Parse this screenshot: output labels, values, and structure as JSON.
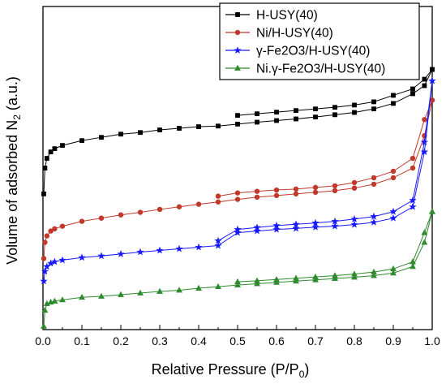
{
  "chart_data": {
    "type": "line",
    "xlabel": "Relative Pressure (P/P",
    "xlabel_sub": "0",
    "xlabel_tail": ")",
    "ylabel": "Volume of adsorbed N",
    "ylabel_sub": "2",
    "ylabel_tail": " (a.u.)",
    "xlim": [
      0.0,
      1.0
    ],
    "ylim": [
      0,
      100
    ],
    "x_ticks": [
      "0.0",
      "0.1",
      "0.2",
      "0.3",
      "0.4",
      "0.5",
      "0.6",
      "0.7",
      "0.8",
      "0.9",
      "1.0"
    ],
    "y_ticks_labeled": false,
    "grid": false,
    "legend_position": "top-right",
    "series": [
      {
        "name": "H-USY(40)",
        "color": "#000000",
        "marker": "square",
        "adsorption": [
          [
            0.002,
            42
          ],
          [
            0.005,
            50
          ],
          [
            0.01,
            53
          ],
          [
            0.02,
            55
          ],
          [
            0.03,
            56
          ],
          [
            0.05,
            57
          ],
          [
            0.1,
            58.5
          ],
          [
            0.15,
            59.5
          ],
          [
            0.2,
            60.5
          ],
          [
            0.25,
            61
          ],
          [
            0.3,
            61.8
          ],
          [
            0.35,
            62.3
          ],
          [
            0.4,
            62.8
          ],
          [
            0.45,
            63
          ],
          [
            0.5,
            63.6
          ],
          [
            0.55,
            64.2
          ],
          [
            0.6,
            64.7
          ],
          [
            0.65,
            65.2
          ],
          [
            0.7,
            65.8
          ],
          [
            0.75,
            66.5
          ],
          [
            0.8,
            67.2
          ],
          [
            0.85,
            68.3
          ],
          [
            0.9,
            70
          ],
          [
            0.95,
            73
          ],
          [
            0.98,
            75.5
          ],
          [
            1.0,
            80.5
          ]
        ],
        "desorption": [
          [
            1.0,
            80.5
          ],
          [
            0.98,
            77.5
          ],
          [
            0.95,
            74.5
          ],
          [
            0.9,
            72.5
          ],
          [
            0.85,
            70.5
          ],
          [
            0.8,
            69.5
          ],
          [
            0.75,
            68.8
          ],
          [
            0.7,
            68.3
          ],
          [
            0.65,
            67.8
          ],
          [
            0.6,
            67.3
          ],
          [
            0.55,
            66.8
          ],
          [
            0.5,
            66.3
          ]
        ]
      },
      {
        "name": "Ni/H-USY(40)",
        "color": "#c0392b",
        "marker": "circle",
        "adsorption": [
          [
            0.002,
            22
          ],
          [
            0.005,
            27
          ],
          [
            0.01,
            29
          ],
          [
            0.02,
            30.5
          ],
          [
            0.03,
            31.2
          ],
          [
            0.05,
            32
          ],
          [
            0.1,
            33.5
          ],
          [
            0.15,
            34.5
          ],
          [
            0.2,
            35.5
          ],
          [
            0.25,
            36.3
          ],
          [
            0.3,
            37.2
          ],
          [
            0.35,
            38
          ],
          [
            0.4,
            38.8
          ],
          [
            0.45,
            39.5
          ],
          [
            0.5,
            40.3
          ],
          [
            0.55,
            41
          ],
          [
            0.6,
            41.5
          ],
          [
            0.65,
            42
          ],
          [
            0.7,
            42.5
          ],
          [
            0.75,
            43
          ],
          [
            0.8,
            43.8
          ],
          [
            0.85,
            45
          ],
          [
            0.9,
            47
          ],
          [
            0.95,
            50
          ],
          [
            0.98,
            60
          ],
          [
            1.0,
            71
          ]
        ],
        "desorption": [
          [
            1.0,
            71
          ],
          [
            0.98,
            65
          ],
          [
            0.95,
            53
          ],
          [
            0.9,
            49
          ],
          [
            0.85,
            47
          ],
          [
            0.8,
            45.5
          ],
          [
            0.75,
            44.5
          ],
          [
            0.7,
            44
          ],
          [
            0.65,
            43.5
          ],
          [
            0.6,
            43.2
          ],
          [
            0.55,
            42.8
          ],
          [
            0.5,
            42.3
          ],
          [
            0.45,
            41.3
          ]
        ]
      },
      {
        "name": "γ-Fe2O3/H-USY(40)",
        "color": "#1a1aff",
        "marker": "star",
        "adsorption": [
          [
            0.002,
            15
          ],
          [
            0.005,
            18
          ],
          [
            0.01,
            19.5
          ],
          [
            0.02,
            20.5
          ],
          [
            0.03,
            21
          ],
          [
            0.05,
            21.5
          ],
          [
            0.1,
            22.3
          ],
          [
            0.15,
            22.8
          ],
          [
            0.2,
            23.4
          ],
          [
            0.25,
            24
          ],
          [
            0.3,
            24.5
          ],
          [
            0.35,
            25
          ],
          [
            0.4,
            25.5
          ],
          [
            0.45,
            26
          ],
          [
            0.5,
            30
          ],
          [
            0.55,
            30.5
          ],
          [
            0.6,
            31
          ],
          [
            0.65,
            31.3
          ],
          [
            0.7,
            31.7
          ],
          [
            0.75,
            32
          ],
          [
            0.8,
            32.5
          ],
          [
            0.85,
            33.2
          ],
          [
            0.9,
            34.5
          ],
          [
            0.95,
            38
          ],
          [
            0.98,
            55
          ],
          [
            1.0,
            77
          ]
        ],
        "desorption": [
          [
            1.0,
            77
          ],
          [
            0.98,
            58
          ],
          [
            0.95,
            40
          ],
          [
            0.9,
            36.5
          ],
          [
            0.85,
            35
          ],
          [
            0.8,
            34.2
          ],
          [
            0.75,
            33.5
          ],
          [
            0.7,
            33
          ],
          [
            0.65,
            32.6
          ],
          [
            0.6,
            32.2
          ],
          [
            0.55,
            31.6
          ],
          [
            0.5,
            31
          ],
          [
            0.45,
            27.5
          ]
        ]
      },
      {
        "name": "Ni.γ-Fe2O3/H-USY(40)",
        "color": "#2e8b2e",
        "marker": "triangle",
        "adsorption": [
          [
            0.002,
            1
          ],
          [
            0.005,
            6
          ],
          [
            0.01,
            8
          ],
          [
            0.02,
            8.5
          ],
          [
            0.03,
            8.8
          ],
          [
            0.05,
            9.2
          ],
          [
            0.1,
            10
          ],
          [
            0.15,
            10.3
          ],
          [
            0.2,
            10.8
          ],
          [
            0.25,
            11.3
          ],
          [
            0.3,
            11.8
          ],
          [
            0.35,
            12.2
          ],
          [
            0.4,
            12.8
          ],
          [
            0.45,
            13.3
          ],
          [
            0.5,
            13.8
          ],
          [
            0.55,
            14.2
          ],
          [
            0.6,
            14.6
          ],
          [
            0.65,
            15
          ],
          [
            0.7,
            15.4
          ],
          [
            0.75,
            15.8
          ],
          [
            0.8,
            16.2
          ],
          [
            0.85,
            16.7
          ],
          [
            0.9,
            17.5
          ],
          [
            0.95,
            19.5
          ],
          [
            0.98,
            27
          ],
          [
            1.0,
            36.5
          ]
        ],
        "desorption": [
          [
            1.0,
            36.5
          ],
          [
            0.98,
            30
          ],
          [
            0.95,
            21
          ],
          [
            0.9,
            18.8
          ],
          [
            0.85,
            17.8
          ],
          [
            0.8,
            17.2
          ],
          [
            0.75,
            16.7
          ],
          [
            0.7,
            16.3
          ],
          [
            0.65,
            15.9
          ],
          [
            0.6,
            15.5
          ],
          [
            0.55,
            15.1
          ],
          [
            0.5,
            14.8
          ]
        ]
      }
    ]
  }
}
